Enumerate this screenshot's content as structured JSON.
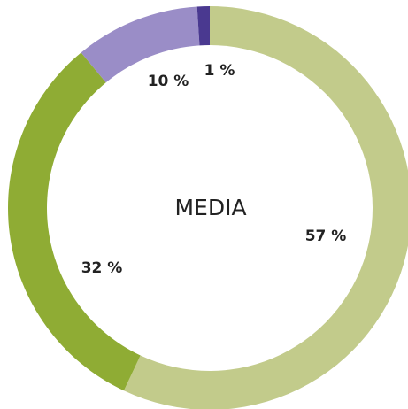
{
  "chart_data": {
    "type": "donut",
    "center_label": "MEDIA",
    "categories": [
      null,
      null,
      null,
      null
    ],
    "values": [
      57,
      32,
      10,
      1
    ],
    "value_labels": [
      "57 %",
      "32 %",
      "10 %",
      "1 %"
    ],
    "colors": [
      "#c2cb8b",
      "#8fac34",
      "#9a8dc7",
      "#4a3990"
    ]
  }
}
